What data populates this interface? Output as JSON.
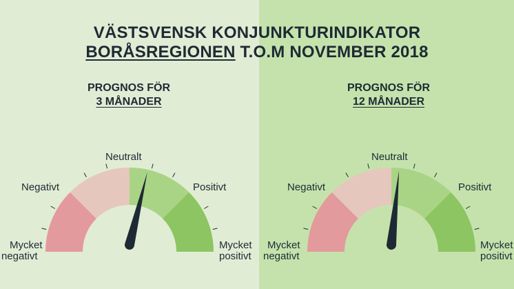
{
  "title": {
    "line1": "VÄSTSVENSK KONJUNKTURINDIKATOR",
    "line2_underlined": "BORÅSREGIONEN",
    "line2_rest": "T.O.M NOVEMBER 2018"
  },
  "panels": [
    {
      "heading_line1": "PROGNOS FÖR",
      "heading_line2": "3 MÅNADER",
      "labels": {
        "very_negative_1": "Mycket",
        "very_negative_2": "negativt",
        "negative": "Negativt",
        "neutral": "Neutralt",
        "positive": "Positivt",
        "very_positive_1": "Mycket",
        "very_positive_2": "positivt"
      },
      "needle_level": 0.57
    },
    {
      "heading_line1": "PROGNOS FÖR",
      "heading_line2": "12 MÅNADER",
      "labels": {
        "very_negative_1": "Mycket",
        "very_negative_2": "negativt",
        "negative": "Negativt",
        "neutral": "Neutralt",
        "positive": "Positivt",
        "very_positive_1": "Mycket",
        "very_positive_2": "positivt"
      },
      "needle_level": 0.53
    }
  ],
  "colors": {
    "very_negative": "#e39a9c",
    "negative": "#e6c7bd",
    "positive": "#a9d485",
    "very_positive": "#8cc561",
    "needle": "#1e2a33"
  }
}
